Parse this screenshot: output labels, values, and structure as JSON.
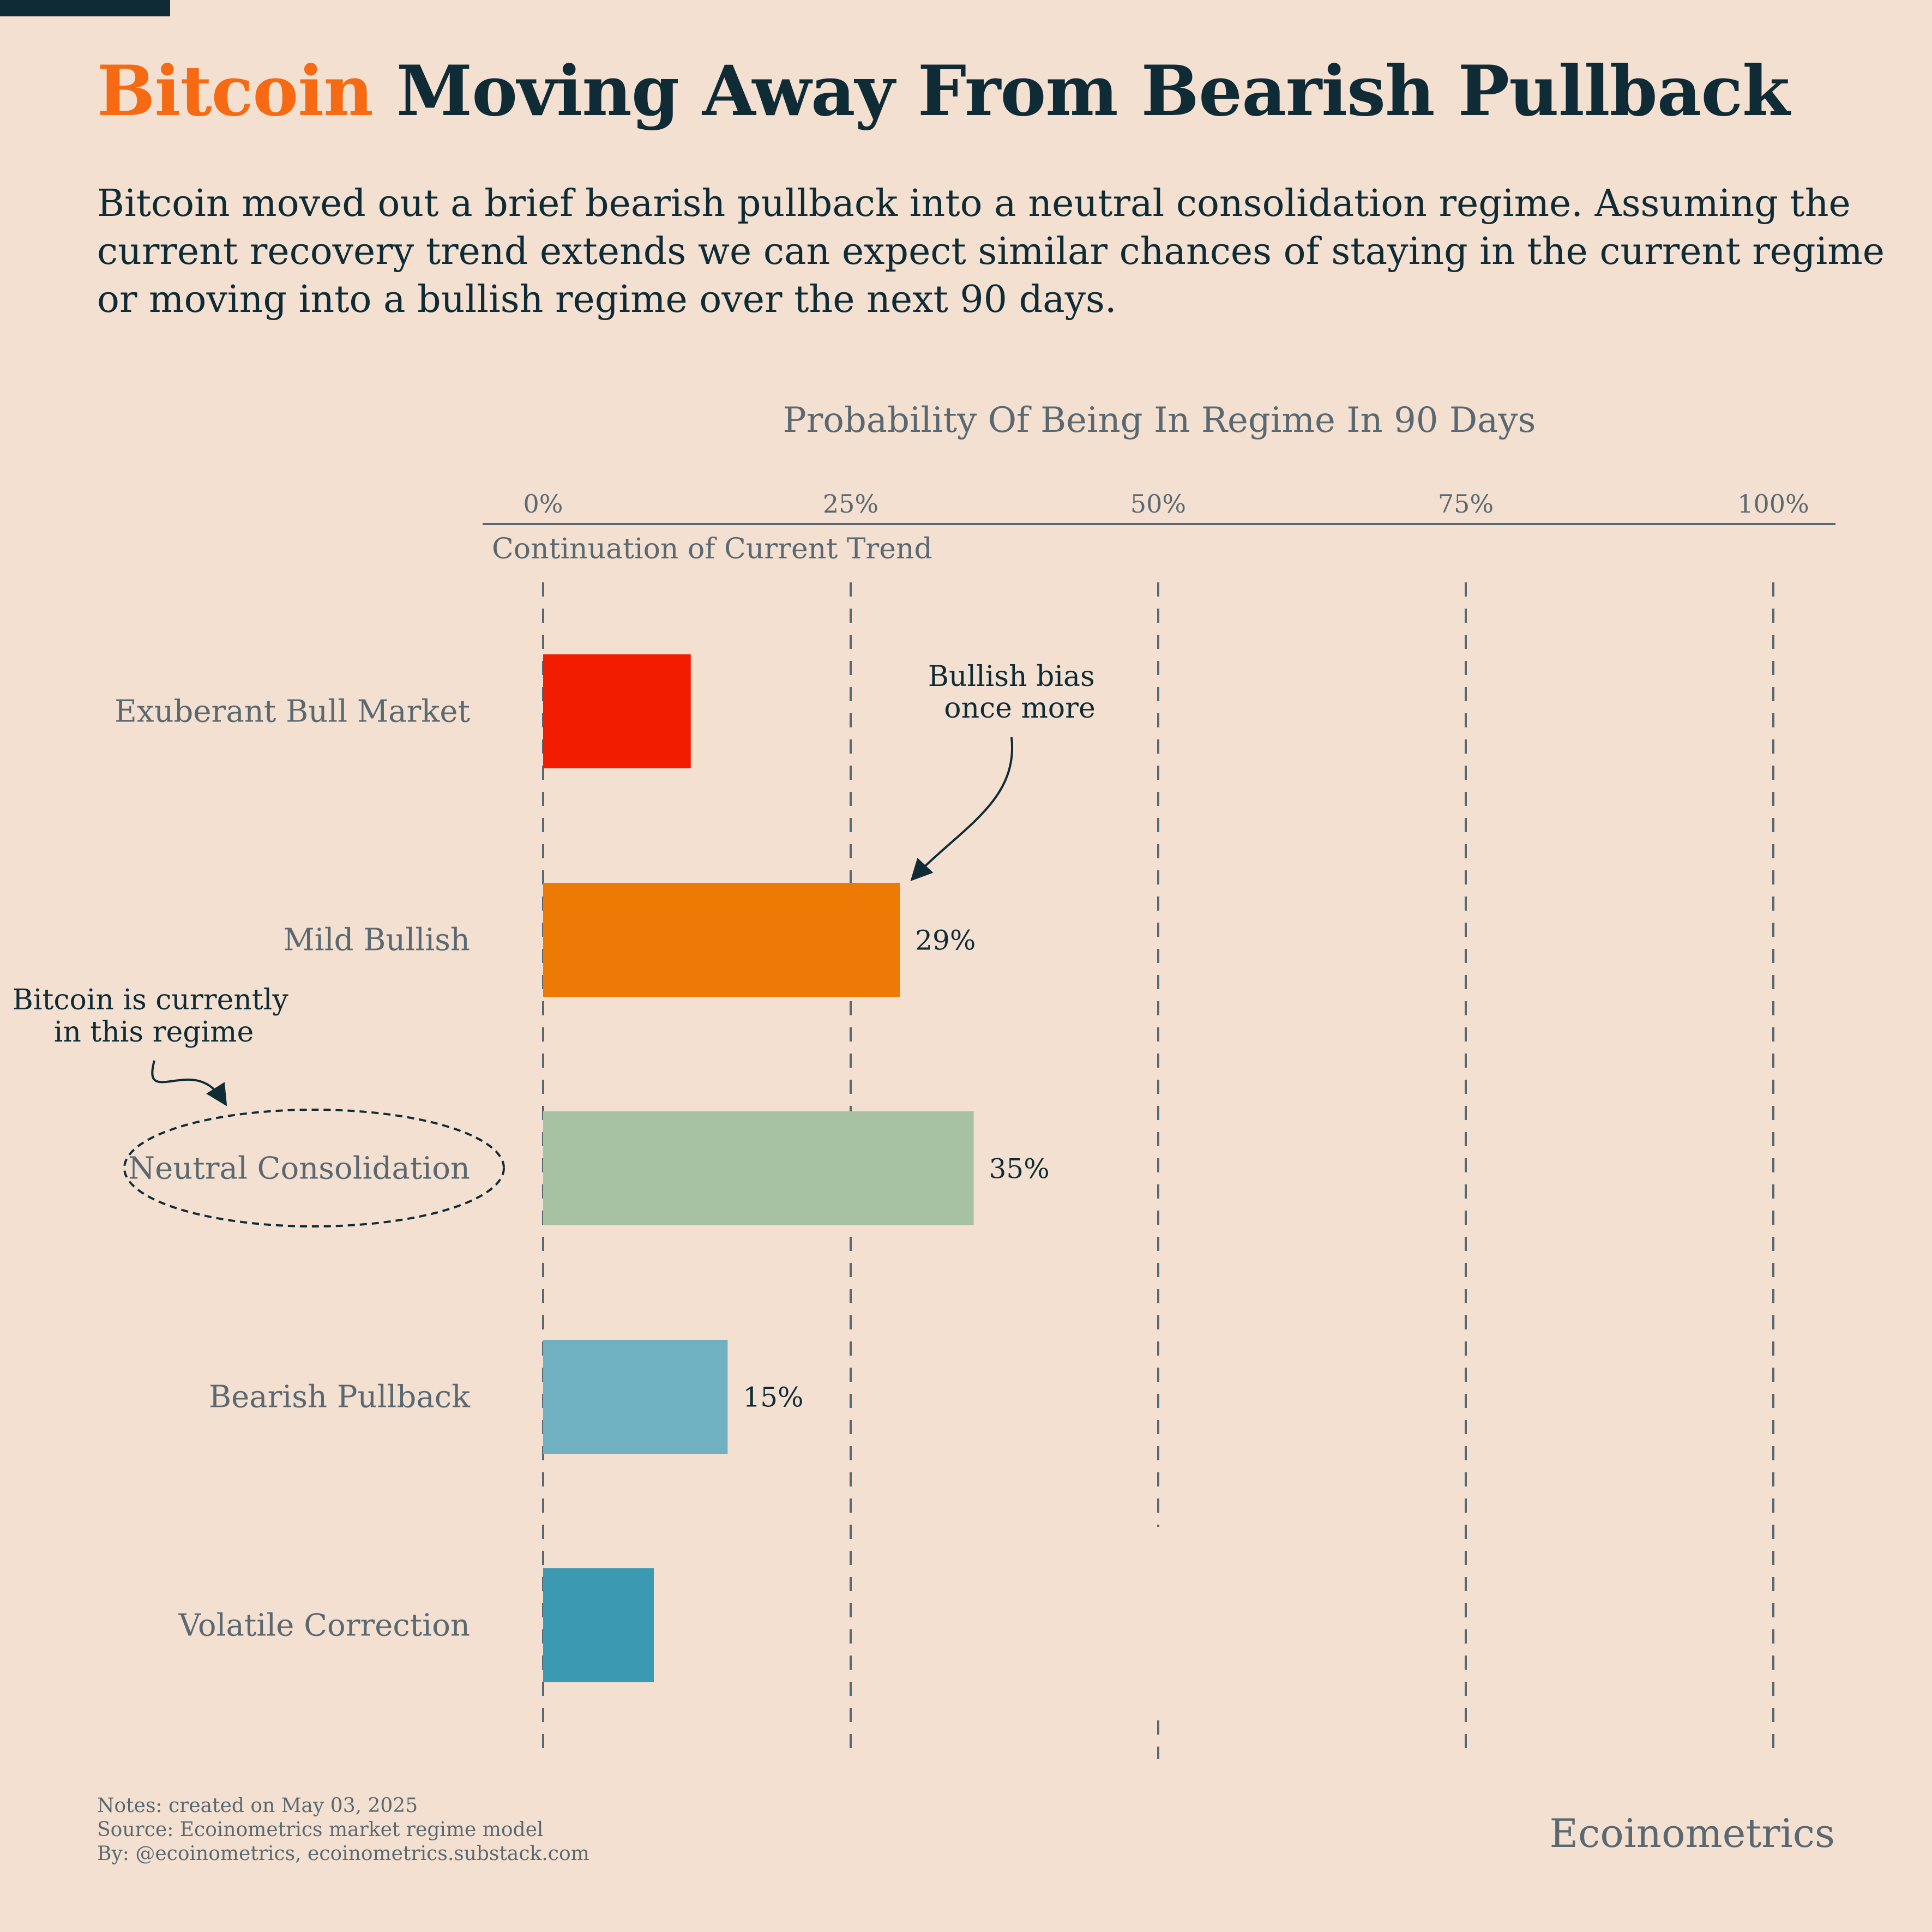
{
  "header": {
    "title_highlight": "Bitcoin",
    "title_rest": "Moving Away From Bearish Pullback",
    "subtitle": "Bitcoin moved out a brief bearish pullback into a neutral consolidation regime. Assuming the current recovery trend extends we can expect similar chances of staying in the current regime or moving into a bullish regime over the next 90 days."
  },
  "chart_data": {
    "type": "bar",
    "orientation": "horizontal",
    "title": "Probability Of Being In Regime In 90 Days",
    "series_label": "Continuation of Current Trend",
    "xlim": [
      0,
      100
    ],
    "x_ticks": [
      0,
      25,
      50,
      75,
      100
    ],
    "x_tick_labels": [
      "0%",
      "25%",
      "50%",
      "75%",
      "100%"
    ],
    "grid": "vertical dashed",
    "categories": [
      "Exuberant Bull Market",
      "Mild Bullish",
      "Neutral Consolidation",
      "Bearish Pullback",
      "Volatile Correction"
    ],
    "values": [
      12,
      29,
      35,
      15,
      9
    ],
    "value_labels": [
      "",
      "29%",
      "35%",
      "15%",
      ""
    ],
    "colors": [
      "#f21d00",
      "#ee7a06",
      "#a6c2a2",
      "#70b1c1",
      "#3c99b2"
    ],
    "annotations": {
      "bullish": [
        "Bullish bias",
        "once more"
      ],
      "current": [
        "Bitcoin is currently",
        "in this regime"
      ],
      "highlighted_category": "Neutral Consolidation"
    }
  },
  "footer": {
    "notes": "Notes: created on May 03, 2025",
    "source": "Source: Ecoinometrics market regime model",
    "by": "By: @ecoinometrics, ecoinometrics.substack.com",
    "brand": "Ecoinometrics"
  },
  "colors": {
    "background": "#f3e0d1",
    "text_dark": "#0f2b36",
    "text_muted": "#5a6871",
    "highlight": "#f56a12"
  }
}
